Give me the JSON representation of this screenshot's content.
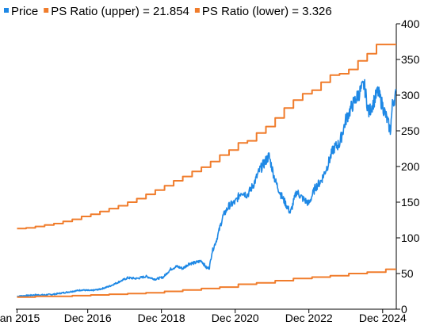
{
  "chart_data": {
    "type": "line",
    "title": "",
    "xlabel": "",
    "ylabel": "",
    "grid": false,
    "legend_position": "top-left",
    "x_range": [
      "2014-12-20",
      "2025-04-15"
    ],
    "y_range": [
      0,
      400
    ],
    "y_axis_side": "right",
    "x_tick_labels": [
      {
        "date": "2015-01-01",
        "label": "Jan 2015"
      },
      {
        "date": "2016-12-01",
        "label": "Dec 2016"
      },
      {
        "date": "2018-12-01",
        "label": "Dec 2018"
      },
      {
        "date": "2020-12-01",
        "label": "Dec 2020"
      },
      {
        "date": "2022-12-01",
        "label": "Dec 2022"
      },
      {
        "date": "2024-12-01",
        "label": "Dec 2024"
      }
    ],
    "y_tick_labels": [
      "0",
      "50",
      "100",
      "150",
      "200",
      "250",
      "300",
      "350",
      "400"
    ],
    "legend": [
      {
        "label": "Price",
        "color": "#1e88e5"
      },
      {
        "label": "PS Ratio (upper) = 21.854",
        "color": "#f07c2b"
      },
      {
        "label": "PS Ratio (lower) = 3.326",
        "color": "#f07c2b"
      }
    ],
    "series": [
      {
        "name": "Price",
        "color": "#1e88e5",
        "style": "line",
        "x": [
          "2015-01-01",
          "2015-04-01",
          "2015-07-01",
          "2015-10-01",
          "2016-01-01",
          "2016-04-01",
          "2016-07-01",
          "2016-10-01",
          "2017-01-01",
          "2017-04-01",
          "2017-07-01",
          "2017-10-01",
          "2018-01-01",
          "2018-04-01",
          "2018-07-01",
          "2018-10-01",
          "2018-12-20",
          "2019-03-01",
          "2019-05-01",
          "2019-07-01",
          "2019-09-01",
          "2019-11-01",
          "2020-01-01",
          "2020-02-20",
          "2020-03-20",
          "2020-04-15",
          "2020-06-01",
          "2020-08-01",
          "2020-10-01",
          "2020-12-01",
          "2021-02-01",
          "2021-04-01",
          "2021-06-01",
          "2021-08-01",
          "2021-11-01",
          "2022-01-01",
          "2022-03-01",
          "2022-06-01",
          "2022-08-01",
          "2022-10-01",
          "2022-12-01",
          "2023-02-01",
          "2023-04-01",
          "2023-06-01",
          "2023-08-01",
          "2023-10-01",
          "2023-12-01",
          "2024-02-01",
          "2024-04-01",
          "2024-06-01",
          "2024-07-15",
          "2024-09-01",
          "2024-10-15",
          "2024-12-01",
          "2025-01-15",
          "2025-02-15",
          "2025-03-10",
          "2025-04-10"
        ],
        "values": [
          18,
          19,
          20,
          20,
          21,
          23,
          25,
          27,
          26,
          28,
          32,
          38,
          44,
          43,
          46,
          42,
          45,
          56,
          60,
          57,
          64,
          65,
          68,
          58,
          58,
          80,
          98,
          130,
          145,
          150,
          165,
          160,
          175,
          195,
          215,
          180,
          160,
          135,
          165,
          155,
          148,
          170,
          180,
          200,
          225,
          232,
          265,
          285,
          300,
          315,
          275,
          290,
          305,
          285,
          265,
          250,
          290,
          300
        ]
      },
      {
        "name": "PS Ratio (upper) = 21.854",
        "color": "#f07c2b",
        "style": "step",
        "x": [
          "2015-01-01",
          "2015-04-01",
          "2015-07-01",
          "2015-10-01",
          "2016-01-01",
          "2016-04-01",
          "2016-07-01",
          "2016-10-01",
          "2017-01-01",
          "2017-04-01",
          "2017-07-01",
          "2017-10-01",
          "2018-01-01",
          "2018-04-01",
          "2018-07-01",
          "2018-10-01",
          "2019-01-01",
          "2019-04-01",
          "2019-07-01",
          "2019-10-01",
          "2020-01-01",
          "2020-04-01",
          "2020-07-01",
          "2020-10-01",
          "2021-01-01",
          "2021-04-01",
          "2021-07-01",
          "2021-10-01",
          "2022-01-01",
          "2022-04-01",
          "2022-07-01",
          "2022-10-01",
          "2023-01-01",
          "2023-04-01",
          "2023-07-01",
          "2023-10-01",
          "2024-01-01",
          "2024-04-01",
          "2024-07-01",
          "2024-10-01",
          "2025-01-01",
          "2025-04-15"
        ],
        "values": [
          113,
          114,
          116,
          118,
          120,
          123,
          126,
          130,
          133,
          137,
          141,
          145,
          150,
          155,
          161,
          167,
          173,
          180,
          186,
          193,
          199,
          207,
          216,
          223,
          233,
          236,
          247,
          256,
          268,
          282,
          293,
          302,
          307,
          318,
          328,
          330,
          336,
          348,
          358,
          371,
          371,
          371
        ]
      },
      {
        "name": "PS Ratio (lower) = 3.326",
        "color": "#f07c2b",
        "style": "step",
        "x": [
          "2015-01-01",
          "2015-07-01",
          "2016-01-01",
          "2016-07-01",
          "2017-01-01",
          "2017-07-01",
          "2018-01-01",
          "2018-07-01",
          "2019-01-01",
          "2019-07-01",
          "2020-01-01",
          "2020-07-01",
          "2021-01-01",
          "2021-07-01",
          "2022-01-01",
          "2022-07-01",
          "2023-01-01",
          "2023-07-01",
          "2024-01-01",
          "2024-07-01",
          "2025-01-01",
          "2025-04-15"
        ],
        "values": [
          17,
          18,
          18,
          19,
          20,
          21,
          22,
          23,
          25,
          27,
          29,
          31,
          35,
          37,
          40,
          43,
          45,
          47,
          50,
          52,
          56,
          56
        ]
      }
    ]
  }
}
